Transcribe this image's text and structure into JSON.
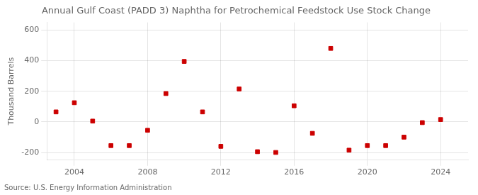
{
  "chart_data": {
    "type": "scatter",
    "title": "Annual Gulf Coast (PADD 3) Naphtha for Petrochemical Feedstock Use Stock Change",
    "ylabel": "Thousand Barrels",
    "annotations": [
      "Source: U.S. Energy Information Administration"
    ],
    "x": [
      2003,
      2004,
      2005,
      2006,
      2007,
      2008,
      2009,
      2010,
      2011,
      2012,
      2013,
      2014,
      2015,
      2016,
      2017,
      2018,
      2019,
      2020,
      2021,
      2022,
      2023,
      2024
    ],
    "values": [
      65,
      125,
      5,
      -155,
      -155,
      -55,
      185,
      395,
      65,
      -160,
      215,
      -195,
      -200,
      105,
      -75,
      480,
      -185,
      -155,
      -155,
      -100,
      -5,
      15
    ],
    "color": "#cc0000",
    "marker": "square",
    "xlim": [
      2002.5,
      2025.5
    ],
    "xticks": [
      2004,
      2008,
      2012,
      2016,
      2020,
      2024
    ],
    "ylim": [
      -250,
      650
    ],
    "yticks": [
      -200,
      0,
      200,
      400,
      600
    ],
    "grid": true
  }
}
